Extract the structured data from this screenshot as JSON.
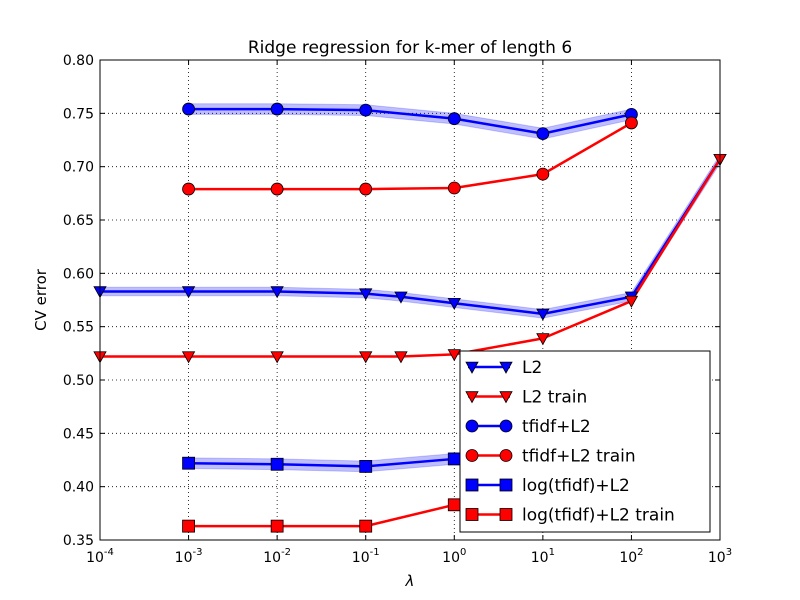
{
  "chart_data": {
    "type": "line",
    "title": "Ridge regression for k-mer of length 6",
    "xlabel": "λ",
    "ylabel": "CV error",
    "xscale": "log",
    "xlim": [
      0.0001,
      1000
    ],
    "ylim": [
      0.35,
      0.8
    ],
    "grid": true,
    "legend_position": "lower-right",
    "x_ticks": [
      {
        "value": 0.0001,
        "base": "10",
        "exp": "-4"
      },
      {
        "value": 0.001,
        "base": "10",
        "exp": "-3"
      },
      {
        "value": 0.01,
        "base": "10",
        "exp": "-2"
      },
      {
        "value": 0.1,
        "base": "10",
        "exp": "-1"
      },
      {
        "value": 1,
        "base": "10",
        "exp": "0"
      },
      {
        "value": 10,
        "base": "10",
        "exp": "1"
      },
      {
        "value": 100,
        "base": "10",
        "exp": "2"
      },
      {
        "value": 1000,
        "base": "10",
        "exp": "3"
      }
    ],
    "y_ticks": [
      "0.35",
      "0.40",
      "0.45",
      "0.50",
      "0.55",
      "0.60",
      "0.65",
      "0.70",
      "0.75",
      "0.80"
    ],
    "series": [
      {
        "name": "L2",
        "color": "#0000ff",
        "marker": "triangle-down",
        "band": 0.004,
        "x": [
          0.0001,
          0.001,
          0.01,
          0.1,
          0.25,
          1,
          10,
          100,
          1000
        ],
        "y": [
          0.583,
          0.583,
          0.583,
          0.581,
          0.578,
          0.572,
          0.562,
          0.578,
          0.707
        ]
      },
      {
        "name": "L2 train",
        "color": "#ff0000",
        "marker": "triangle-down",
        "x": [
          0.0001,
          0.001,
          0.01,
          0.1,
          0.25,
          1,
          10,
          100,
          1000
        ],
        "y": [
          0.522,
          0.522,
          0.522,
          0.522,
          0.522,
          0.524,
          0.539,
          0.574,
          0.707
        ]
      },
      {
        "name": "tfidf+L2",
        "color": "#0000ff",
        "marker": "circle",
        "band": 0.005,
        "x": [
          0.001,
          0.01,
          0.1,
          1,
          10,
          100
        ],
        "y": [
          0.754,
          0.754,
          0.753,
          0.745,
          0.731,
          0.749
        ]
      },
      {
        "name": "tfidf+L2 train",
        "color": "#ff0000",
        "marker": "circle",
        "x": [
          0.001,
          0.01,
          0.1,
          1,
          10,
          100
        ],
        "y": [
          0.679,
          0.679,
          0.679,
          0.68,
          0.693,
          0.741
        ]
      },
      {
        "name": "log(tfidf)+L2",
        "color": "#0000ff",
        "marker": "square",
        "band": 0.005,
        "x": [
          0.001,
          0.01,
          0.1,
          1
        ],
        "y": [
          0.422,
          0.421,
          0.419,
          0.426
        ]
      },
      {
        "name": "log(tfidf)+L2 train",
        "color": "#ff0000",
        "marker": "square",
        "x": [
          0.001,
          0.01,
          0.1,
          1
        ],
        "y": [
          0.363,
          0.363,
          0.363,
          0.383
        ]
      }
    ]
  }
}
